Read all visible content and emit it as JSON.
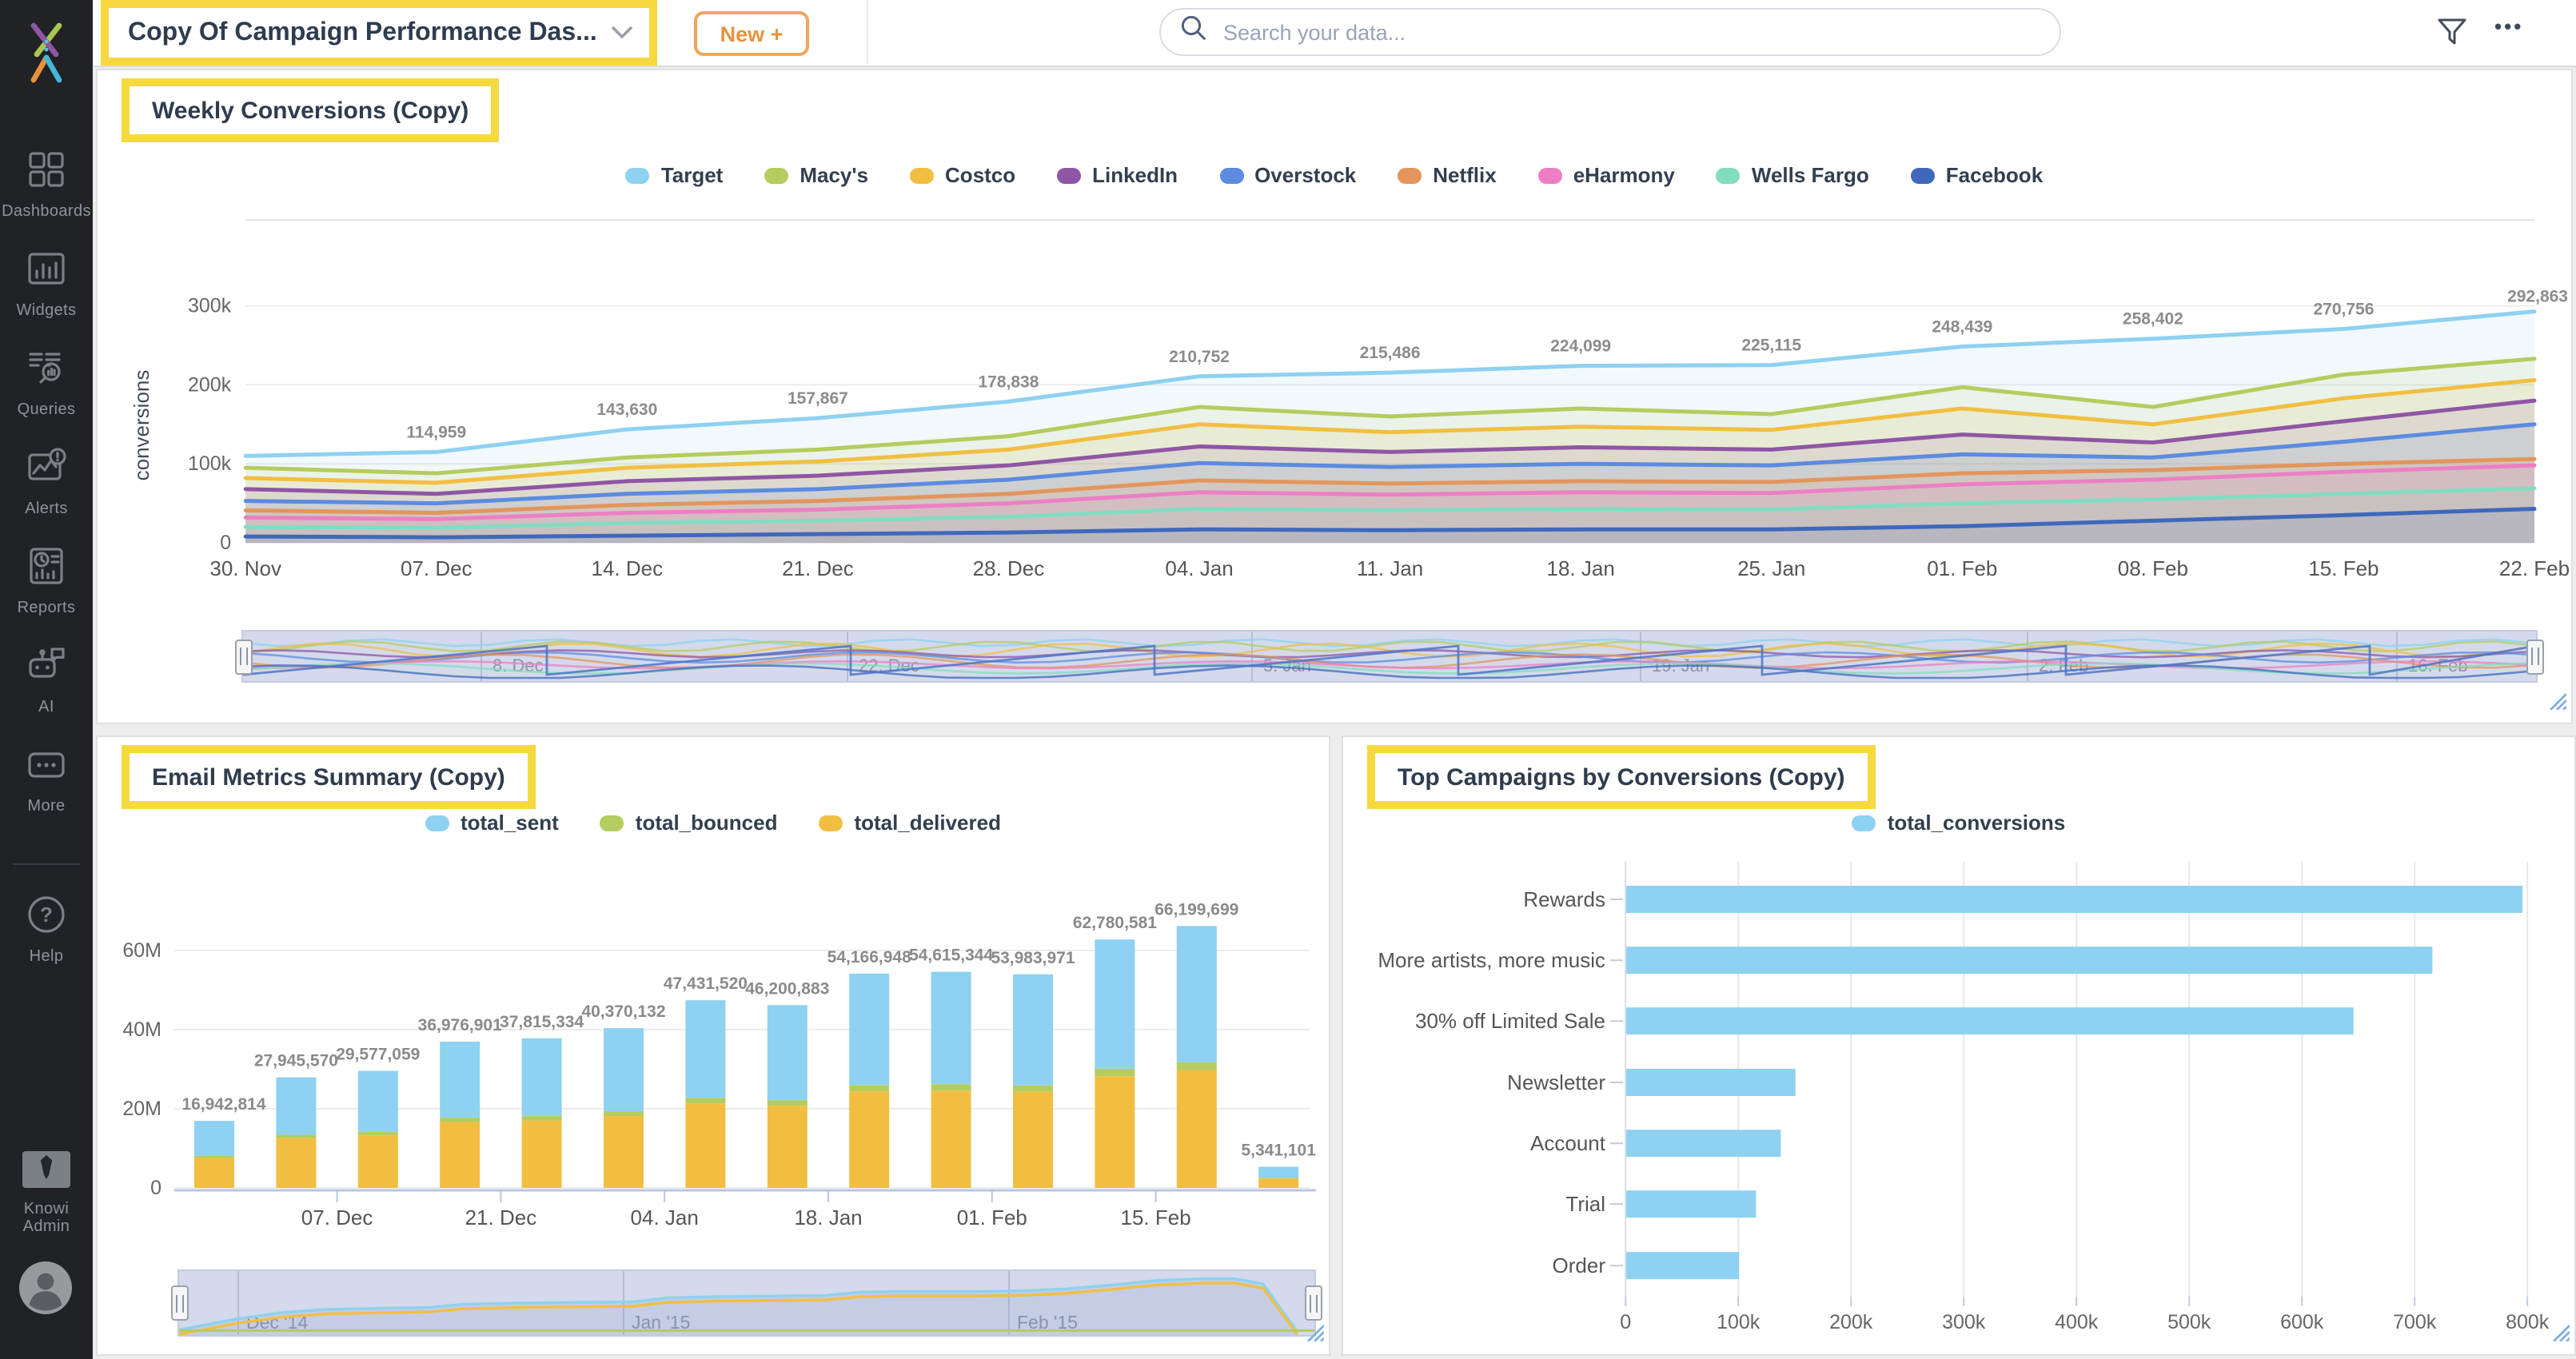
{
  "topbar": {
    "dashboard_title": "Copy Of Campaign Performance Das...",
    "new_button": "New +",
    "search_placeholder": "Search your data...",
    "ellipsis": "•••"
  },
  "sidebar": {
    "items": [
      {
        "label": "Dashboards",
        "icon": "dashboards-icon"
      },
      {
        "label": "Widgets",
        "icon": "widgets-icon"
      },
      {
        "label": "Queries",
        "icon": "queries-icon"
      },
      {
        "label": "Alerts",
        "icon": "alerts-icon"
      },
      {
        "label": "Reports",
        "icon": "reports-icon"
      },
      {
        "label": "AI",
        "icon": "ai-icon"
      },
      {
        "label": "More",
        "icon": "more-icon"
      }
    ],
    "help": {
      "label": "Help",
      "icon": "help-icon"
    },
    "admin": {
      "label": "Knowi Admin",
      "icon": "admin-icon"
    }
  },
  "chart_data": [
    {
      "id": "weekly",
      "type": "line",
      "title": "Weekly Conversions (Copy)",
      "ylabel": "conversions",
      "yticks": [
        "0",
        "100k",
        "200k",
        "300k"
      ],
      "ylim_k": [
        0,
        414
      ],
      "grid": true,
      "legend_position": "top",
      "categories": [
        "30. Nov",
        "07. Dec",
        "14. Dec",
        "21. Dec",
        "28. Dec",
        "04. Jan",
        "11. Jan",
        "18. Jan",
        "25. Jan",
        "01. Feb",
        "08. Feb",
        "15. Feb",
        "22. Feb"
      ],
      "point_labels": [
        "",
        "114,959",
        "143,630",
        "157,867",
        "178,838",
        "210,752",
        "215,486",
        "224,099",
        "225,115",
        "248,439",
        "258,402",
        "270,756",
        "292,863"
      ],
      "series": [
        {
          "name": "Target",
          "color": "#8ED1F0",
          "values_k": [
            110,
            114.959,
            143.63,
            157.867,
            178.838,
            210.752,
            215.486,
            224.099,
            225.115,
            248.439,
            258.402,
            270.756,
            292.863
          ]
        },
        {
          "name": "Macy's",
          "color": "#B5CC5E",
          "values_k": [
            95,
            88,
            108,
            118,
            135,
            172,
            160,
            170,
            163,
            197,
            172,
            213,
            233
          ]
        },
        {
          "name": "Costco",
          "color": "#F2BE42",
          "values_k": [
            82,
            76,
            95,
            103,
            118,
            150,
            140,
            147,
            143,
            170,
            150,
            183,
            206
          ]
        },
        {
          "name": "LinkedIn",
          "color": "#8F56A5",
          "values_k": [
            68,
            62,
            78,
            85,
            98,
            122,
            115,
            121,
            118,
            137,
            127,
            154,
            180
          ]
        },
        {
          "name": "Overstock",
          "color": "#5C8BE0",
          "values_k": [
            53,
            50,
            62,
            68,
            80,
            101,
            96,
            100,
            98,
            112,
            108,
            128,
            150
          ]
        },
        {
          "name": "Netflix",
          "color": "#E3955C",
          "values_k": [
            41,
            38,
            48,
            53,
            62,
            79,
            75,
            78,
            77,
            88,
            92,
            100,
            106
          ]
        },
        {
          "name": "eHarmony",
          "color": "#EC7FC4",
          "values_k": [
            32,
            30,
            38,
            42,
            50,
            64,
            61,
            64,
            63,
            74,
            80,
            90,
            98
          ]
        },
        {
          "name": "Wells Fargo",
          "color": "#82DCC0",
          "values_k": [
            20,
            19,
            25,
            28,
            33,
            43,
            41,
            43,
            42,
            50,
            55,
            62,
            69
          ]
        },
        {
          "name": "Facebook",
          "color": "#3E68BC",
          "values_k": [
            8,
            7,
            9,
            11,
            13,
            17,
            16,
            17,
            17,
            21,
            28,
            35,
            43
          ]
        }
      ],
      "navigator_labels": [
        "8. Dec",
        "22. Dec",
        "5. Jan",
        "19. Jan",
        "2. Feb",
        "16. Feb"
      ]
    },
    {
      "id": "email",
      "type": "stacked-bar",
      "title": "Email Metrics Summary (Copy)",
      "yticks": [
        "0",
        "20M",
        "40M",
        "60M"
      ],
      "ylim": [
        0,
        70000000
      ],
      "grid": true,
      "legend_position": "top",
      "legend_series": [
        {
          "name": "total_sent",
          "color": "#8ED1F0"
        },
        {
          "name": "total_bounced",
          "color": "#B5CC5E"
        },
        {
          "name": "total_delivered",
          "color": "#F2BE42"
        }
      ],
      "stack_order_bottom_up": [
        "total_delivered",
        "total_bounced",
        "total_sent"
      ],
      "stack_fractions": {
        "total_delivered": 0.45,
        "total_bounced": 0.03,
        "total_sent": 0.52
      },
      "totals": [
        16942814,
        27945570,
        29577059,
        36976901,
        37815334,
        40370132,
        47431520,
        46200883,
        54166948,
        54615344,
        53983971,
        62780581,
        66199699,
        5341101
      ],
      "labels": [
        "16,942,814",
        "27,945,570",
        "29,577,059",
        "36,976,901",
        "37,815,334",
        "40,370,132",
        "47,431,520",
        "46,200,883",
        "54,166,948",
        "54,615,344",
        "53,983,971",
        "62,780,581",
        "66,199,699",
        "5,341,101"
      ],
      "tick_labels": [
        "07. Dec",
        "21. Dec",
        "04. Jan",
        "18. Jan",
        "01. Feb",
        "15. Feb"
      ],
      "navigator_labels": [
        "Dec '14",
        "Jan '15",
        "Feb '15"
      ]
    },
    {
      "id": "campaigns",
      "type": "bar-horizontal",
      "title": "Top Campaigns by Conversions (Copy)",
      "legend": {
        "name": "total_conversions",
        "color": "#8ED1F0"
      },
      "categories": [
        "Rewards",
        "More artists, more music",
        "30% off Limited Sale",
        "Newsletter",
        "Account",
        "Trial",
        "Order"
      ],
      "values": [
        795000,
        715000,
        645000,
        150000,
        137000,
        115000,
        100000
      ],
      "xticks": [
        "0",
        "100k",
        "200k",
        "300k",
        "400k",
        "500k",
        "600k",
        "700k",
        "800k"
      ],
      "xlim": [
        0,
        800000
      ],
      "grid": true
    }
  ],
  "colors": {
    "highlight_yellow": "#F6D93F",
    "accent_orange": "#E8913C",
    "sidebar_bg": "#202225",
    "title_navy": "#2F3C4E",
    "navigator_bg": "#D4DAEB"
  }
}
